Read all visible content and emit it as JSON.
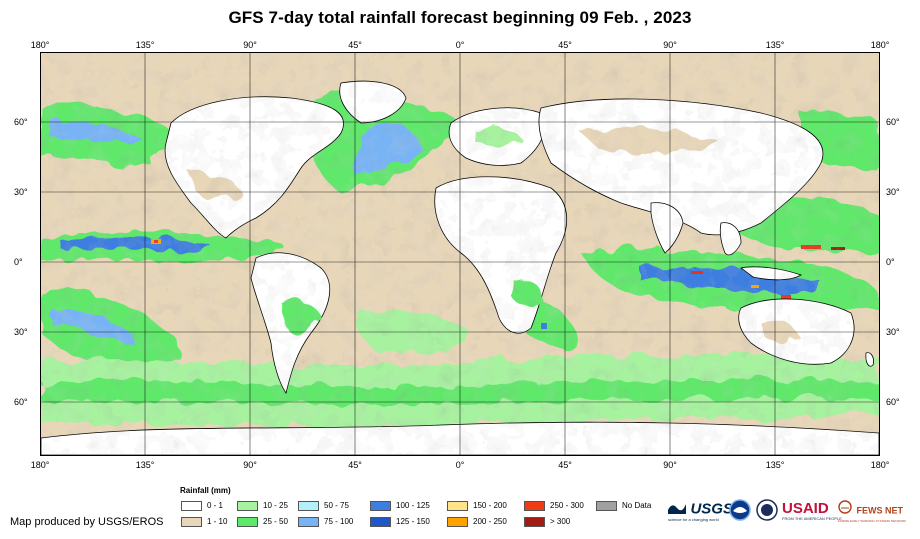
{
  "title": "GFS 7-day total rainfall forecast beginning 09 Feb. , 2023",
  "map": {
    "lon_labels": [
      "180°",
      "135°",
      "90°",
      "45°",
      "0°",
      "45°",
      "90°",
      "135°",
      "180°"
    ],
    "lat_labels": [
      "60°",
      "30°",
      "0°",
      "30°",
      "60°"
    ],
    "colors": {
      "frame": "#000000",
      "grid": "#000000",
      "land_dry": "#ffffff",
      "ocean_dry": "#e8d6b8",
      "moderate": "#a6f29e",
      "wet": "#5ee86a",
      "heavy": "#78b4f5",
      "very_heavy": "#3d7ee0",
      "extreme": "#e8321a"
    }
  },
  "legend": {
    "title": "Rainfall (mm)",
    "items": [
      {
        "label": "0 - 1",
        "color": "#ffffff"
      },
      {
        "label": "1 - 10",
        "color": "#e8d6b8"
      },
      {
        "label": "10 - 25",
        "color": "#a6f29e"
      },
      {
        "label": "25 - 50",
        "color": "#5ee86a"
      },
      {
        "label": "50 - 75",
        "color": "#b4f0fa"
      },
      {
        "label": "75 - 100",
        "color": "#78b4f5"
      },
      {
        "label": "100 - 125",
        "color": "#3d7ee0"
      },
      {
        "label": "125 - 150",
        "color": "#1f56c8"
      },
      {
        "label": "150 - 200",
        "color": "#ffe48a"
      },
      {
        "label": "200 - 250",
        "color": "#ffa200"
      },
      {
        "label": "250 - 300",
        "color": "#f03c14"
      },
      {
        "label": "> 300",
        "color": "#a01c14"
      },
      {
        "label": "No Data",
        "color": "#a0a0a0"
      }
    ]
  },
  "credit": "Map produced by USGS/EROS",
  "logos": {
    "usgs": {
      "name": "USGS",
      "tagline": "science for a changing world",
      "icon": "usgs-wave-icon"
    },
    "noaa": {
      "icon": "noaa-seal-icon"
    },
    "doi": {
      "icon": "doi-seal-icon"
    },
    "usaid": {
      "name": "USAID",
      "tagline": "FROM THE AMERICAN PEOPLE",
      "icon": "usaid-seal-icon"
    },
    "fews": {
      "name": "FEWS NET",
      "tagline": "FAMINE EARLY WARNING SYSTEMS NETWORK",
      "icon": "fews-net-icon"
    }
  }
}
